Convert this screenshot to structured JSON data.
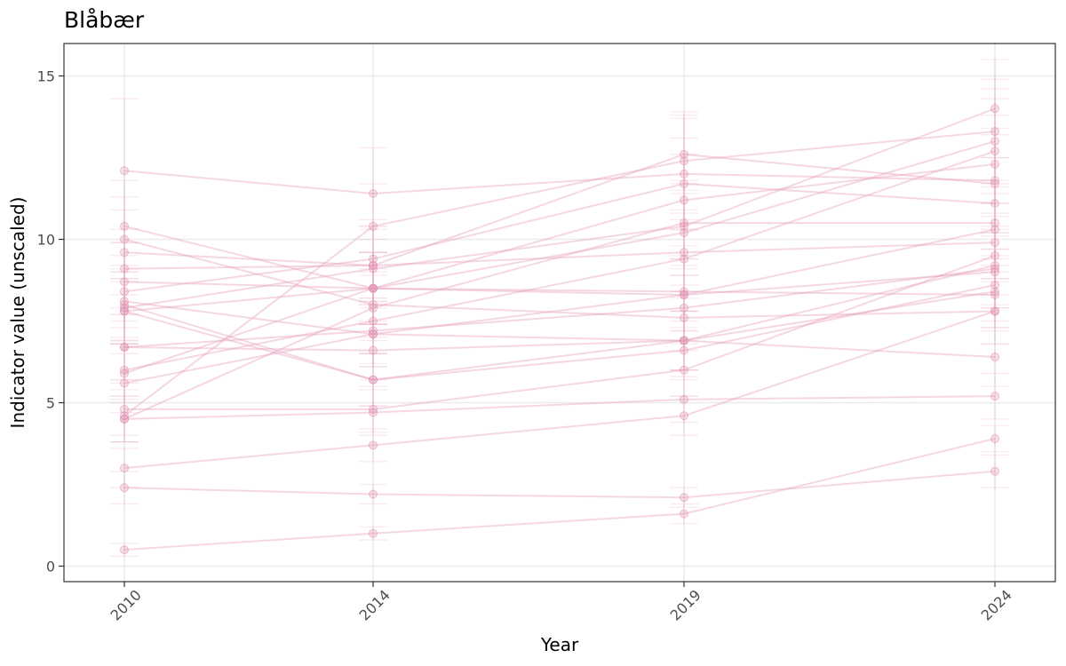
{
  "chart_data": {
    "type": "line",
    "title": "Blåbær",
    "xlabel": "Year",
    "ylabel": "Indicator value (unscaled)",
    "x_categories": [
      "2010",
      "2014",
      "2019",
      "2024"
    ],
    "yticks": [
      0,
      5,
      10,
      15
    ],
    "ylim": [
      -0.5,
      16
    ],
    "grid": true,
    "legend": "none",
    "colors": {
      "series": "#e8a0bc",
      "point": "#e090b0",
      "panel_border": "#333333",
      "grid": "#ebebeb"
    },
    "series": [
      {
        "values": [
          12.1,
          11.4,
          12.0,
          11.8
        ],
        "err": [
          2.2,
          1.4,
          1.7,
          1.6
        ]
      },
      {
        "values": [
          10.4,
          8.5,
          8.4,
          8.3
        ],
        "err": [
          1.4,
          1.1,
          1.1,
          1.1
        ]
      },
      {
        "values": [
          10.0,
          8.0,
          7.6,
          7.8
        ],
        "err": [
          1.3,
          1.0,
          1.0,
          1.0
        ]
      },
      {
        "values": [
          9.6,
          9.2,
          9.6,
          9.9
        ],
        "err": [
          1.3,
          1.2,
          1.2,
          1.2
        ]
      },
      {
        "values": [
          9.1,
          9.2,
          12.6,
          11.7
        ],
        "err": [
          1.2,
          1.2,
          1.2,
          1.5
        ]
      },
      {
        "values": [
          8.7,
          8.5,
          8.3,
          9.0
        ],
        "err": [
          1.2,
          1.1,
          1.1,
          1.1
        ]
      },
      {
        "values": [
          8.4,
          9.4,
          11.7,
          11.1
        ],
        "err": [
          1.1,
          1.2,
          1.4,
          1.4
        ]
      },
      {
        "values": [
          8.1,
          7.1,
          6.9,
          6.4
        ],
        "err": [
          1.1,
          1.0,
          0.9,
          0.9
        ]
      },
      {
        "values": [
          8.0,
          5.7,
          6.9,
          9.2
        ],
        "err": [
          1.1,
          0.8,
          0.9,
          1.2
        ]
      },
      {
        "values": [
          7.8,
          5.7,
          6.6,
          8.6
        ],
        "err": [
          1.0,
          0.8,
          0.9,
          1.1
        ]
      },
      {
        "values": [
          7.8,
          8.5,
          10.2,
          13.0
        ],
        "err": [
          1.0,
          1.1,
          1.3,
          1.6
        ]
      },
      {
        "values": [
          6.7,
          6.6,
          6.9,
          8.4
        ],
        "err": [
          1.0,
          0.9,
          0.9,
          1.1
        ]
      },
      {
        "values": [
          6.7,
          7.2,
          7.9,
          9.1
        ],
        "err": [
          1.0,
          1.0,
          1.0,
          1.2
        ]
      },
      {
        "values": [
          6.0,
          7.5,
          9.4,
          12.7
        ],
        "err": [
          0.9,
          1.0,
          1.2,
          1.6
        ]
      },
      {
        "values": [
          5.9,
          8.5,
          11.2,
          12.3
        ],
        "err": [
          0.9,
          1.1,
          1.4,
          1.5
        ]
      },
      {
        "values": [
          5.6,
          7.1,
          8.3,
          10.3
        ],
        "err": [
          0.9,
          1.0,
          1.1,
          1.3
        ]
      },
      {
        "values": [
          4.8,
          4.8,
          6.0,
          9.5
        ],
        "err": [
          0.8,
          0.7,
          0.8,
          1.2
        ]
      },
      {
        "values": [
          4.6,
          10.4,
          12.4,
          13.3
        ],
        "err": [
          0.8,
          1.3,
          1.5,
          1.6
        ]
      },
      {
        "values": [
          4.5,
          7.9,
          10.5,
          10.5
        ],
        "err": [
          0.7,
          1.0,
          1.3,
          1.3
        ]
      },
      {
        "values": [
          4.5,
          4.7,
          5.1,
          5.2
        ],
        "err": [
          0.7,
          0.7,
          0.7,
          0.7
        ]
      },
      {
        "values": [
          3.0,
          3.7,
          4.6,
          7.8
        ],
        "err": [
          0.6,
          0.5,
          0.6,
          1.0
        ]
      },
      {
        "values": [
          2.4,
          2.2,
          2.1,
          2.9
        ],
        "err": [
          0.5,
          0.3,
          0.3,
          0.5
        ]
      },
      {
        "values": [
          0.5,
          1.0,
          1.6,
          3.9
        ],
        "err": [
          0.2,
          0.2,
          0.3,
          0.4
        ]
      },
      {
        "values": [
          7.9,
          9.1,
          10.4,
          14.0
        ],
        "err": [
          1.1,
          1.2,
          1.3,
          1.5
        ]
      }
    ]
  }
}
